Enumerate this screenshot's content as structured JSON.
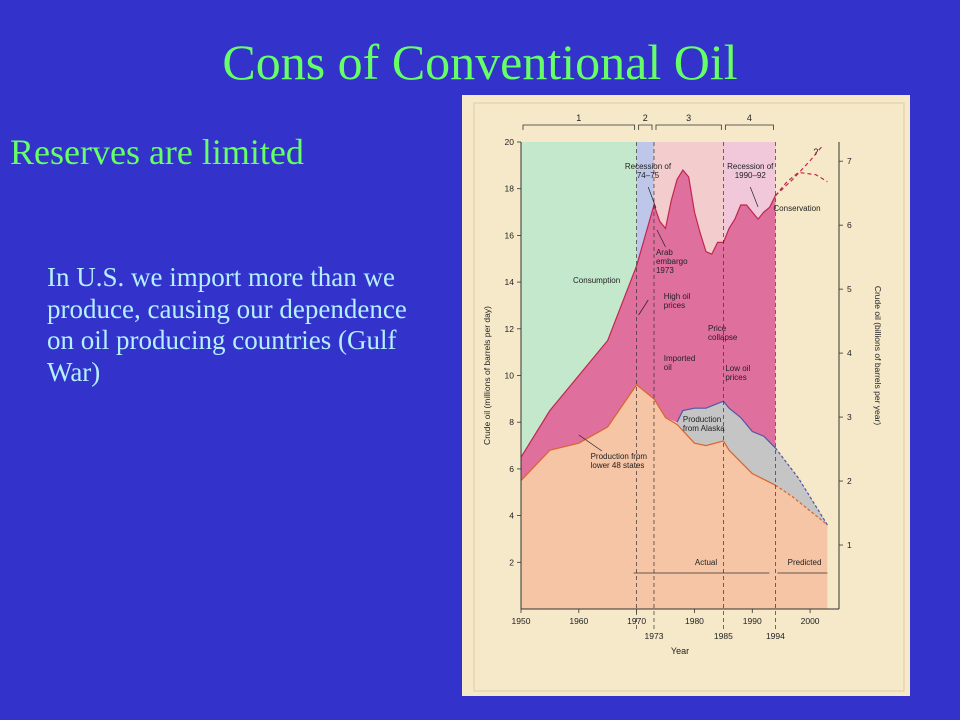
{
  "slide": {
    "title": "Cons of Conventional Oil",
    "bullet": "Reserves are limited",
    "sub_bullet": "In U.S. we import more than we produce, causing our dependence on oil producing countries (Gulf War)"
  },
  "colors": {
    "background": "#3333cc",
    "title": "#66ff66",
    "sub_text": "#b4f0ff",
    "period1": "#c4e8cc",
    "period2": "#bec6ea",
    "period3": "#f3cccd",
    "period4": "#f0c8da",
    "imports": "#df6f9d",
    "production_alaska": "#c5c5c5",
    "production_lower48": "#f5c5a5",
    "consumption_line": "#c2264e",
    "lower48_line": "#d9652e",
    "alaska_line": "#5255a8"
  },
  "chart_data": {
    "type": "area",
    "xlabel": "Year",
    "ylabel": "Crude oil (millions of barrels per day)",
    "ylabel_right": "Crude oil (billions of barrels per year)",
    "xlim": [
      1950,
      2005
    ],
    "ylim": [
      0,
      20
    ],
    "y2lim": [
      0,
      7.3
    ],
    "x_ticks": [
      "1950",
      "1960",
      "1970",
      "1980",
      "1990",
      "2000"
    ],
    "x_ticks_lower": [
      "1973",
      "1985",
      "1994"
    ],
    "y_ticks": [
      "2",
      "4",
      "6",
      "8",
      "10",
      "12",
      "14",
      "16",
      "18",
      "20"
    ],
    "y2_ticks": [
      "1",
      "2",
      "3",
      "4",
      "5",
      "6",
      "7"
    ],
    "periods": [
      {
        "label": "1",
        "start": 1950,
        "end": 1970
      },
      {
        "label": "2",
        "start": 1970,
        "end": 1973
      },
      {
        "label": "3",
        "start": 1973,
        "end": 1985
      },
      {
        "label": "4",
        "start": 1985,
        "end": 1994
      }
    ],
    "series": [
      {
        "name": "Consumption",
        "x": [
          1950,
          1955,
          1960,
          1965,
          1970,
          1973,
          1974,
          1975,
          1976,
          1977,
          1978,
          1979,
          1980,
          1981,
          1982,
          1983,
          1984,
          1985,
          1986,
          1987,
          1988,
          1989,
          1990,
          1991,
          1992,
          1993,
          1994
        ],
        "values": [
          6.5,
          8.5,
          10.0,
          11.5,
          14.7,
          17.3,
          16.6,
          16.3,
          17.5,
          18.4,
          18.8,
          18.5,
          17.0,
          16.1,
          15.3,
          15.2,
          15.7,
          15.7,
          16.3,
          16.7,
          17.3,
          17.3,
          17.0,
          16.7,
          17.0,
          17.2,
          17.7
        ]
      },
      {
        "name": "Production from lower 48 states",
        "x": [
          1950,
          1955,
          1960,
          1965,
          1970,
          1973,
          1975,
          1977,
          1980,
          1982,
          1985,
          1986,
          1988,
          1990,
          1994
        ],
        "values": [
          5.5,
          6.8,
          7.1,
          7.8,
          9.6,
          9.0,
          8.2,
          7.9,
          7.1,
          7.0,
          7.2,
          6.8,
          6.3,
          5.8,
          5.3
        ]
      },
      {
        "name": "Production from Alaska",
        "x": [
          1977,
          1978,
          1980,
          1982,
          1985,
          1986,
          1988,
          1990,
          1992,
          1994
        ],
        "values": [
          8.0,
          8.5,
          8.6,
          8.6,
          8.9,
          8.6,
          8.2,
          7.6,
          7.4,
          6.9
        ]
      },
      {
        "name": "Predicted production",
        "x": [
          1994,
          1997,
          2000,
          2003
        ],
        "values": [
          5.3,
          4.8,
          4.2,
          3.6
        ]
      },
      {
        "name": "Predicted total production",
        "x": [
          1994,
          1998,
          2003
        ],
        "values": [
          6.9,
          5.6,
          3.6
        ]
      },
      {
        "name": "Predicted consumption",
        "x": [
          1994,
          1996,
          1998,
          2001,
          2003
        ],
        "values": [
          17.7,
          18.3,
          18.7,
          18.6,
          18.3
        ]
      },
      {
        "name": "Predicted consumption",
        "x": [
          1994,
          1997,
          2000,
          2002
        ],
        "values": [
          17.7,
          18.4,
          19.2,
          19.8
        ]
      }
    ],
    "annotations": {
      "period_labels": [
        "1",
        "2",
        "3",
        "4"
      ],
      "recession_1": "Recession of 74–75",
      "recession_2": "Recession of 1990–92",
      "question": "?",
      "conservation": "Conservation",
      "arab_embargo": "Arab embargo 1973",
      "consumption": "Consumption",
      "high_oil_prices": "High oil prices",
      "price_collapse": "Price collapse",
      "imported_oil": "Imported oil",
      "low_oil_prices": "Low oil prices",
      "production_alaska": "Production from Alaska",
      "production_lower48": "Production from lower 48 states",
      "actual": "Actual",
      "predicted": "Predicted"
    }
  }
}
